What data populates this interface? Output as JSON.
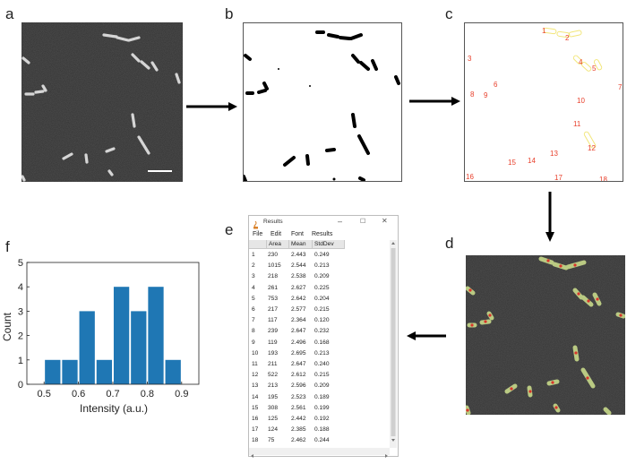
{
  "panels": {
    "a": "a",
    "b": "b",
    "c": "c",
    "d": "d",
    "e": "e",
    "f": "f"
  },
  "roi_labels": [
    "1",
    "2",
    "3",
    "4",
    "5",
    "6",
    "7",
    "8",
    "9",
    "10",
    "11",
    "12",
    "13",
    "14",
    "15",
    "16",
    "17",
    "18"
  ],
  "results_window": {
    "title": "Results",
    "minimize": "–",
    "maximize": "☐",
    "close": "✕",
    "menu": [
      "File",
      "Edit",
      "Font",
      "Results"
    ],
    "columns": [
      "",
      "Area",
      "Mean",
      "StdDev"
    ],
    "rows": [
      [
        "1",
        "230",
        "2.443",
        "0.249"
      ],
      [
        "2",
        "1015",
        "2.544",
        "0.213"
      ],
      [
        "3",
        "218",
        "2.538",
        "0.209"
      ],
      [
        "4",
        "261",
        "2.627",
        "0.225"
      ],
      [
        "5",
        "753",
        "2.642",
        "0.204"
      ],
      [
        "6",
        "217",
        "2.577",
        "0.215"
      ],
      [
        "7",
        "117",
        "2.364",
        "0.120"
      ],
      [
        "8",
        "239",
        "2.647",
        "0.232"
      ],
      [
        "9",
        "119",
        "2.496",
        "0.168"
      ],
      [
        "10",
        "193",
        "2.695",
        "0.213"
      ],
      [
        "11",
        "211",
        "2.647",
        "0.240"
      ],
      [
        "12",
        "522",
        "2.612",
        "0.215"
      ],
      [
        "13",
        "213",
        "2.596",
        "0.209"
      ],
      [
        "14",
        "195",
        "2.523",
        "0.189"
      ],
      [
        "15",
        "308",
        "2.561",
        "0.199"
      ],
      [
        "16",
        "125",
        "2.442",
        "0.192"
      ],
      [
        "17",
        "124",
        "2.385",
        "0.188"
      ],
      [
        "18",
        "75",
        "2.462",
        "0.244"
      ]
    ]
  },
  "chart_data": {
    "type": "bar",
    "x": [
      0.525,
      0.575,
      0.625,
      0.675,
      0.725,
      0.775,
      0.825,
      0.875
    ],
    "categories": [
      "0.50-0.55",
      "0.55-0.60",
      "0.60-0.65",
      "0.65-0.70",
      "0.70-0.75",
      "0.75-0.80",
      "0.80-0.85",
      "0.85-0.90"
    ],
    "values": [
      1,
      1,
      3,
      1,
      4,
      3,
      4,
      1
    ],
    "bin_width": 0.05,
    "xlabel": "Intensity (a.u.)",
    "ylabel": "Count",
    "xlim": [
      0.45,
      0.95
    ],
    "ylim": [
      0,
      5
    ],
    "xticks": [
      "0.5",
      "0.6",
      "0.7",
      "0.8",
      "0.9"
    ],
    "yticks": [
      "0",
      "1",
      "2",
      "3",
      "4",
      "5"
    ],
    "bar_color": "#1f77b4",
    "grid": false
  }
}
